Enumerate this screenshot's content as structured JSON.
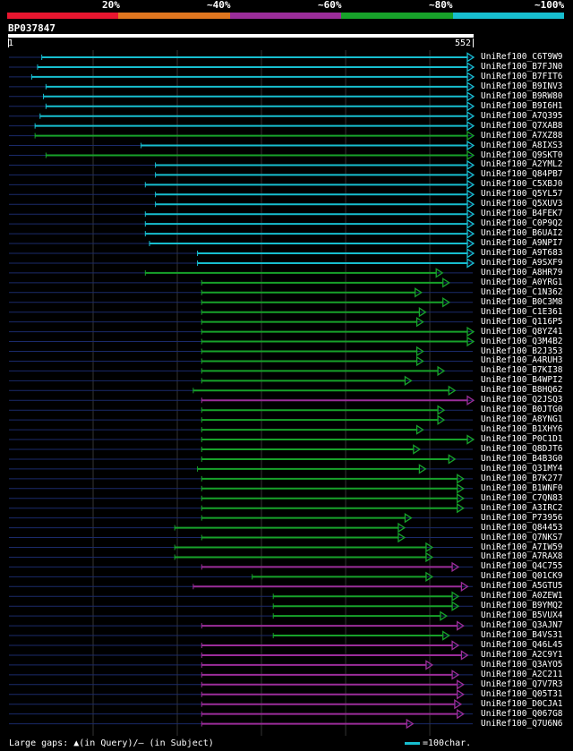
{
  "legend": {
    "colors": [
      "#e8162f",
      "#e0761f",
      "#9b2d9a",
      "#17a22a",
      "#17becf"
    ],
    "labels": [
      "20%",
      "~40%",
      "~60%",
      "~80%",
      "~100%"
    ]
  },
  "query": {
    "id": "BP037847",
    "start": "1",
    "end": "552",
    "length": 552
  },
  "chart_data": {
    "type": "table",
    "hits": [
      {
        "name": "UniRef100_C6T9W9",
        "start": 40,
        "end": 552,
        "identity": 100
      },
      {
        "name": "UniRef100_B7FJN0",
        "start": 35,
        "end": 552,
        "identity": 100
      },
      {
        "name": "UniRef100_B7FIT6",
        "start": 28,
        "end": 552,
        "identity": 100
      },
      {
        "name": "UniRef100_B9INV3",
        "start": 45,
        "end": 552,
        "identity": 100
      },
      {
        "name": "UniRef100_B9RW80",
        "start": 42,
        "end": 552,
        "identity": 100
      },
      {
        "name": "UniRef100_B9I6H1",
        "start": 45,
        "end": 552,
        "identity": 100
      },
      {
        "name": "UniRef100_A7Q395",
        "start": 38,
        "end": 552,
        "identity": 100
      },
      {
        "name": "UniRef100_Q7XAB8",
        "start": 32,
        "end": 552,
        "identity": 100
      },
      {
        "name": "UniRef100_A7XZ88",
        "start": 32,
        "end": 552,
        "identity": 80
      },
      {
        "name": "UniRef100_A8IXS3",
        "start": 158,
        "end": 552,
        "identity": 100
      },
      {
        "name": "UniRef100_Q9SKT0",
        "start": 45,
        "end": 552,
        "identity": 80
      },
      {
        "name": "UniRef100_A2YML2",
        "start": 175,
        "end": 552,
        "identity": 100
      },
      {
        "name": "UniRef100_Q84PB7",
        "start": 175,
        "end": 552,
        "identity": 100
      },
      {
        "name": "UniRef100_C5XBJ0",
        "start": 163,
        "end": 552,
        "identity": 100
      },
      {
        "name": "UniRef100_Q5YL57",
        "start": 175,
        "end": 552,
        "identity": 100
      },
      {
        "name": "UniRef100_Q5XUV3",
        "start": 175,
        "end": 552,
        "identity": 100
      },
      {
        "name": "UniRef100_B4FEK7",
        "start": 163,
        "end": 552,
        "identity": 100
      },
      {
        "name": "UniRef100_C0P9Q2",
        "start": 163,
        "end": 552,
        "identity": 100
      },
      {
        "name": "UniRef100_B6UAI2",
        "start": 163,
        "end": 552,
        "identity": 100
      },
      {
        "name": "UniRef100_A9NPI7",
        "start": 168,
        "end": 552,
        "identity": 100
      },
      {
        "name": "UniRef100_A9T683",
        "start": 225,
        "end": 552,
        "identity": 100
      },
      {
        "name": "UniRef100_A9SXF9",
        "start": 225,
        "end": 552,
        "identity": 100
      },
      {
        "name": "UniRef100_A8HR79",
        "start": 163,
        "end": 515,
        "identity": 80
      },
      {
        "name": "UniRef100_A0YRG1",
        "start": 230,
        "end": 523,
        "identity": 80
      },
      {
        "name": "UniRef100_C1N362",
        "start": 230,
        "end": 490,
        "identity": 80
      },
      {
        "name": "UniRef100_B0C3M8",
        "start": 230,
        "end": 523,
        "identity": 80
      },
      {
        "name": "UniRef100_C1E361",
        "start": 230,
        "end": 495,
        "identity": 80
      },
      {
        "name": "UniRef100_Q116P5",
        "start": 230,
        "end": 492,
        "identity": 80
      },
      {
        "name": "UniRef100_Q8YZ41",
        "start": 230,
        "end": 552,
        "identity": 80
      },
      {
        "name": "UniRef100_Q3M4B2",
        "start": 230,
        "end": 552,
        "identity": 80
      },
      {
        "name": "UniRef100_B2J353",
        "start": 230,
        "end": 492,
        "identity": 80
      },
      {
        "name": "UniRef100_A4RUH3",
        "start": 230,
        "end": 492,
        "identity": 80
      },
      {
        "name": "UniRef100_B7KI38",
        "start": 230,
        "end": 517,
        "identity": 80
      },
      {
        "name": "UniRef100_B4WPI2",
        "start": 230,
        "end": 478,
        "identity": 80
      },
      {
        "name": "UniRef100_B8HQ62",
        "start": 220,
        "end": 530,
        "identity": 80
      },
      {
        "name": "UniRef100_Q2JSQ3",
        "start": 230,
        "end": 552,
        "identity": 60
      },
      {
        "name": "UniRef100_B0JTG0",
        "start": 230,
        "end": 517,
        "identity": 80
      },
      {
        "name": "UniRef100_A8YNG1",
        "start": 230,
        "end": 517,
        "identity": 80
      },
      {
        "name": "UniRef100_B1XHY6",
        "start": 230,
        "end": 492,
        "identity": 80
      },
      {
        "name": "UniRef100_P0C1D1",
        "start": 230,
        "end": 552,
        "identity": 80
      },
      {
        "name": "UniRef100_Q8DJT6",
        "start": 230,
        "end": 488,
        "identity": 80
      },
      {
        "name": "UniRef100_B4B3G0",
        "start": 230,
        "end": 530,
        "identity": 80
      },
      {
        "name": "UniRef100_Q31MY4",
        "start": 225,
        "end": 495,
        "identity": 80
      },
      {
        "name": "UniRef100_B7K277",
        "start": 230,
        "end": 540,
        "identity": 80
      },
      {
        "name": "UniRef100_B1WNF0",
        "start": 230,
        "end": 540,
        "identity": 80
      },
      {
        "name": "UniRef100_C7QN83",
        "start": 230,
        "end": 540,
        "identity": 80
      },
      {
        "name": "UniRef100_A3IRC2",
        "start": 230,
        "end": 540,
        "identity": 80
      },
      {
        "name": "UniRef100_P73956",
        "start": 230,
        "end": 478,
        "identity": 80
      },
      {
        "name": "UniRef100_Q84453",
        "start": 198,
        "end": 470,
        "identity": 80
      },
      {
        "name": "UniRef100_Q7NKS7",
        "start": 230,
        "end": 470,
        "identity": 80
      },
      {
        "name": "UniRef100_A7IW59",
        "start": 198,
        "end": 503,
        "identity": 80
      },
      {
        "name": "UniRef100_A7RAX8",
        "start": 198,
        "end": 503,
        "identity": 80
      },
      {
        "name": "UniRef100_Q4C755",
        "start": 230,
        "end": 534,
        "identity": 60
      },
      {
        "name": "UniRef100_Q01CK9",
        "start": 290,
        "end": 503,
        "identity": 80
      },
      {
        "name": "UniRef100_A5GTU5",
        "start": 220,
        "end": 545,
        "identity": 60
      },
      {
        "name": "UniRef100_A0ZEW1",
        "start": 315,
        "end": 534,
        "identity": 80
      },
      {
        "name": "UniRef100_B9YMQ2",
        "start": 315,
        "end": 534,
        "identity": 80
      },
      {
        "name": "UniRef100_B5VUX4",
        "start": 315,
        "end": 520,
        "identity": 80
      },
      {
        "name": "UniRef100_Q3AJN7",
        "start": 230,
        "end": 540,
        "identity": 60
      },
      {
        "name": "UniRef100_B4VS31",
        "start": 315,
        "end": 523,
        "identity": 80
      },
      {
        "name": "UniRef100_Q46L45",
        "start": 230,
        "end": 534,
        "identity": 60
      },
      {
        "name": "UniRef100_A2C9Y1",
        "start": 230,
        "end": 545,
        "identity": 60
      },
      {
        "name": "UniRef100_Q3AYO5",
        "start": 230,
        "end": 503,
        "identity": 60
      },
      {
        "name": "UniRef100_A2C211",
        "start": 230,
        "end": 534,
        "identity": 60
      },
      {
        "name": "UniRef100_Q7V7R3",
        "start": 230,
        "end": 540,
        "identity": 60
      },
      {
        "name": "UniRef100_Q05T31",
        "start": 230,
        "end": 540,
        "identity": 60
      },
      {
        "name": "UniRef100_D0CJA1",
        "start": 230,
        "end": 537,
        "identity": 60
      },
      {
        "name": "UniRef100_Q067G8",
        "start": 230,
        "end": 540,
        "identity": 60
      },
      {
        "name": "UniRef100_Q7U6N6",
        "start": 230,
        "end": 480,
        "identity": 60
      }
    ]
  },
  "footer": {
    "note": "Large gaps: ▲(in Query)/– (in Subject)",
    "scale": "=100char."
  }
}
